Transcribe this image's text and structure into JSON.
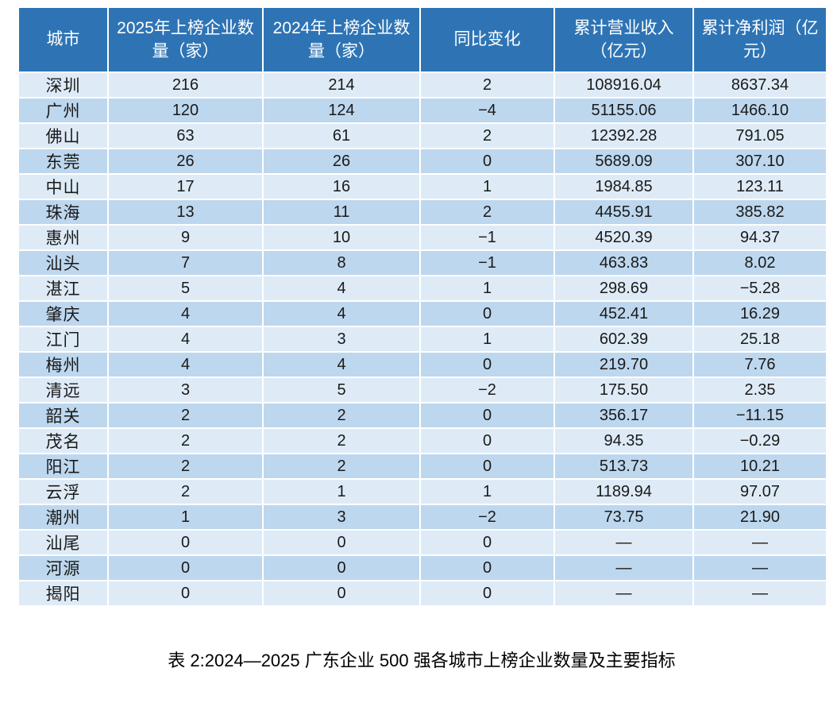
{
  "table": {
    "columns": [
      "城市",
      "2025年上榜企业数量（家）",
      "2024年上榜企业数量（家）",
      "同比变化",
      "累计营业收入（亿元）",
      "累计净利润（亿元）"
    ],
    "rows": [
      [
        "深圳",
        "216",
        "214",
        "2",
        "108916.04",
        "8637.34"
      ],
      [
        "广州",
        "120",
        "124",
        "−4",
        "51155.06",
        "1466.10"
      ],
      [
        "佛山",
        "63",
        "61",
        "2",
        "12392.28",
        "791.05"
      ],
      [
        "东莞",
        "26",
        "26",
        "0",
        "5689.09",
        "307.10"
      ],
      [
        "中山",
        "17",
        "16",
        "1",
        "1984.85",
        "123.11"
      ],
      [
        "珠海",
        "13",
        "11",
        "2",
        "4455.91",
        "385.82"
      ],
      [
        "惠州",
        "9",
        "10",
        "−1",
        "4520.39",
        "94.37"
      ],
      [
        "汕头",
        "7",
        "8",
        "−1",
        "463.83",
        "8.02"
      ],
      [
        "湛江",
        "5",
        "4",
        "1",
        "298.69",
        "−5.28"
      ],
      [
        "肇庆",
        "4",
        "4",
        "0",
        "452.41",
        "16.29"
      ],
      [
        "江门",
        "4",
        "3",
        "1",
        "602.39",
        "25.18"
      ],
      [
        "梅州",
        "4",
        "4",
        "0",
        "219.70",
        "7.76"
      ],
      [
        "清远",
        "3",
        "5",
        "−2",
        "175.50",
        "2.35"
      ],
      [
        "韶关",
        "2",
        "2",
        "0",
        "356.17",
        "−11.15"
      ],
      [
        "茂名",
        "2",
        "2",
        "0",
        "94.35",
        "−0.29"
      ],
      [
        "阳江",
        "2",
        "2",
        "0",
        "513.73",
        "10.21"
      ],
      [
        "云浮",
        "2",
        "1",
        "1",
        "1189.94",
        "97.07"
      ],
      [
        "潮州",
        "1",
        "3",
        "−2",
        "73.75",
        "21.90"
      ],
      [
        "汕尾",
        "0",
        "0",
        "0",
        "—",
        "—"
      ],
      [
        "河源",
        "0",
        "0",
        "0",
        "—",
        "—"
      ],
      [
        "揭阳",
        "0",
        "0",
        "0",
        "—",
        "—"
      ]
    ]
  },
  "caption": "表 2:2024—2025 广东企业 500 强各城市上榜企业数量及主要指标",
  "colors": {
    "header_bg": "#2E74B5",
    "header_text": "#FFFFFF",
    "row_light": "#DEEBF7",
    "row_dark": "#BDD7EE",
    "body_text": "#1A1A1A",
    "cell_border": "#FFFFFF"
  }
}
